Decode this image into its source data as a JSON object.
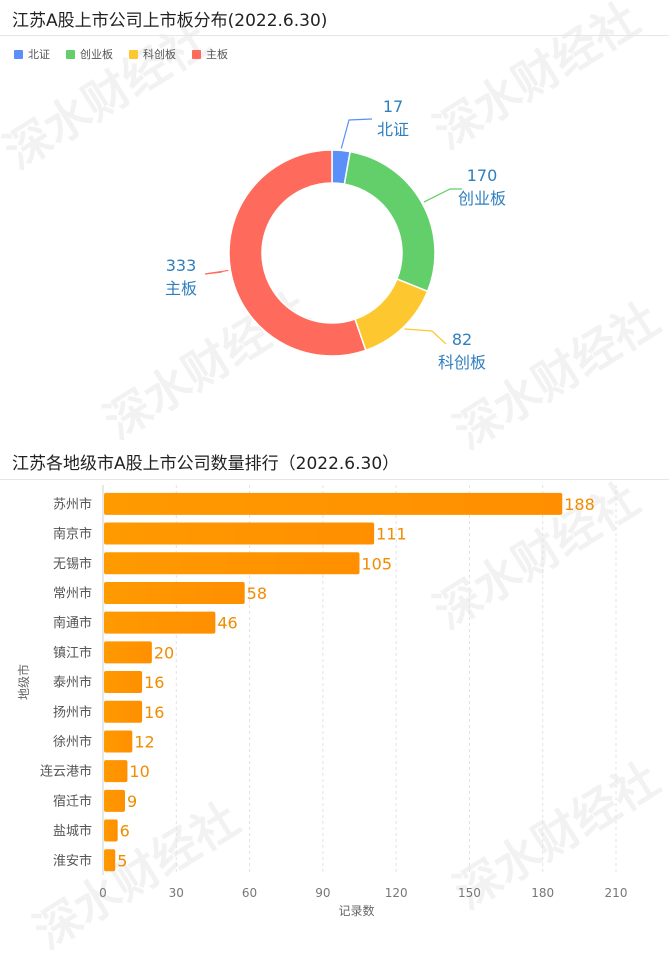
{
  "watermark": "深水财经社",
  "chart_data": [
    {
      "type": "pie",
      "variant": "donut",
      "title": "江苏A股上市公司上市板分布(2022.6.30)",
      "legend_position": "top-left",
      "series": [
        {
          "name": "北证",
          "value": 17,
          "color": "#5b8ff9"
        },
        {
          "name": "创业板",
          "value": 170,
          "color": "#62cf6a"
        },
        {
          "name": "科创板",
          "value": 82,
          "color": "#fdc82f"
        },
        {
          "name": "主板",
          "value": 333,
          "color": "#fe6a5b"
        }
      ]
    },
    {
      "type": "bar",
      "orientation": "horizontal",
      "title": "江苏各地级市A股上市公司数量排行（2022.6.30）",
      "xlabel": "记录数",
      "ylabel": "地级市",
      "xlim": [
        0,
        210
      ],
      "xticks": [
        0,
        30,
        60,
        90,
        120,
        150,
        180,
        210
      ],
      "grid": true,
      "bar_color": "#ff9500",
      "label_color": "#f08c00",
      "categories": [
        "苏州市",
        "南京市",
        "无锡市",
        "常州市",
        "南通市",
        "镇江市",
        "泰州市",
        "扬州市",
        "徐州市",
        "连云港市",
        "宿迁市",
        "盐城市",
        "淮安市"
      ],
      "values": [
        188,
        111,
        105,
        58,
        46,
        20,
        16,
        16,
        12,
        10,
        9,
        6,
        5
      ]
    }
  ]
}
